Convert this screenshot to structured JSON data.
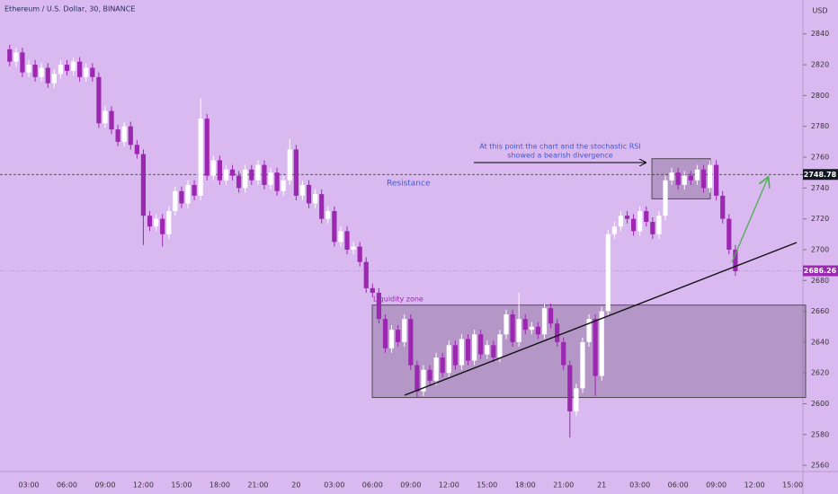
{
  "chart_data": {
    "type": "candlestick",
    "title": "Ethereum / U.S. Dollar, 30, BINANCE",
    "axis_unit": "USD",
    "annotations": {
      "divergence_line1": "At this point the chart and the stochastic RSI",
      "divergence_line2": "showed a bearish divergence",
      "resistance": "Resistance",
      "liquidity": "Liquidity zone"
    },
    "resistance_level": 2748.78,
    "last_price": 2686.26,
    "liquidity_zone": [
      2604,
      2664
    ],
    "divergence_box": [
      2733,
      2759
    ],
    "up_color": "#ffffff",
    "down_color": "#9c27b0",
    "ylim": [
      2556,
      2862
    ],
    "yticks": [
      2560,
      2580,
      2600,
      2620,
      2640,
      2660,
      2680,
      2700,
      2720,
      2740,
      2760,
      2780,
      2800,
      2820,
      2840
    ],
    "categories": [
      null,
      null,
      null,
      "03:00",
      null,
      null,
      null,
      null,
      null,
      "06:00",
      null,
      null,
      null,
      null,
      null,
      "09:00",
      null,
      null,
      null,
      null,
      null,
      "12:00",
      null,
      null,
      null,
      null,
      null,
      "15:00",
      null,
      null,
      null,
      null,
      null,
      "18:00",
      null,
      null,
      null,
      null,
      null,
      "21:00",
      null,
      null,
      null,
      null,
      null,
      "20",
      null,
      null,
      null,
      null,
      null,
      "03:00",
      null,
      null,
      null,
      null,
      null,
      "06:00",
      null,
      null,
      null,
      null,
      null,
      "09:00",
      null,
      null,
      null,
      null,
      null,
      "12:00",
      null,
      null,
      null,
      null,
      null,
      "15:00",
      null,
      null,
      null,
      null,
      null,
      "18:00",
      null,
      null,
      null,
      null,
      null,
      "21:00",
      null,
      null,
      null,
      null,
      null,
      "21",
      null,
      null,
      null,
      null,
      null,
      "03:00",
      null,
      null,
      null,
      null,
      null,
      "06:00",
      null,
      null,
      null,
      null,
      null,
      "09:00",
      null,
      null,
      null,
      null,
      null,
      "12:00",
      null,
      null,
      null,
      null,
      null,
      "15:00",
      null
    ],
    "open": [
      2830,
      2822,
      2828,
      2815,
      2820,
      2812,
      2818,
      2808,
      2814,
      2820,
      2816,
      2822,
      2812,
      2818,
      2812,
      2782,
      2790,
      2778,
      2770,
      2780,
      2768,
      2762,
      2722,
      2715,
      2720,
      2710,
      2725,
      2738,
      2730,
      2742,
      2735,
      2785,
      2748,
      2758,
      2745,
      2752,
      2748,
      2740,
      2752,
      2745,
      2755,
      2742,
      2750,
      2738,
      2745,
      2765,
      2735,
      2742,
      2730,
      2736,
      2720,
      2725,
      2705,
      2712,
      2700,
      2702,
      2692,
      2675,
      2672,
      2655,
      2636,
      2648,
      2640,
      2655,
      2625,
      2608,
      2622,
      2615,
      2630,
      2620,
      2638,
      2625,
      2642,
      2628,
      2645,
      2632,
      2638,
      2630,
      2645,
      2658,
      2640,
      2655,
      2648,
      2650,
      2645,
      2662,
      2652,
      2640,
      2625,
      2595,
      2610,
      2640,
      2655,
      2618,
      2660,
      2710,
      2715,
      2722,
      2720,
      2712,
      2725,
      2718,
      2710,
      2722,
      2745,
      2750,
      2742,
      2748,
      2745,
      2752,
      2740,
      2755,
      2735,
      2720,
      2700,
      null,
      null,
      null,
      null,
      null,
      null,
      null,
      null,
      null,
      null
    ],
    "high": [
      2833,
      2831,
      2831,
      2823,
      2823,
      2821,
      2821,
      2817,
      2823,
      2823,
      2825,
      2825,
      2821,
      2821,
      2815,
      2793,
      2793,
      2781,
      2783,
      2783,
      2771,
      2765,
      2725,
      2723,
      2723,
      2728,
      2741,
      2741,
      2745,
      2745,
      2798,
      2788,
      2761,
      2761,
      2755,
      2755,
      2751,
      2755,
      2755,
      2758,
      2758,
      2753,
      2753,
      2748,
      2772,
      2768,
      2745,
      2745,
      2739,
      2739,
      2728,
      2728,
      2715,
      2715,
      2705,
      2705,
      2695,
      2678,
      2675,
      2658,
      2651,
      2651,
      2658,
      2658,
      2628,
      2625,
      2625,
      2633,
      2633,
      2641,
      2641,
      2645,
      2645,
      2648,
      2648,
      2641,
      2641,
      2648,
      2661,
      2661,
      2672,
      2658,
      2653,
      2653,
      2665,
      2665,
      2655,
      2643,
      2628,
      2613,
      2643,
      2658,
      2658,
      2663,
      2713,
      2718,
      2725,
      2725,
      2723,
      2728,
      2728,
      2721,
      2725,
      2748,
      2753,
      2753,
      2751,
      2751,
      2755,
      2755,
      2758,
      2758,
      2738,
      2723,
      2703,
      null,
      null,
      null,
      null,
      null,
      null,
      null,
      null,
      null,
      null
    ],
    "low": [
      2819,
      2819,
      2812,
      2812,
      2809,
      2809,
      2805,
      2805,
      2811,
      2813,
      2813,
      2809,
      2809,
      2809,
      2779,
      2779,
      2775,
      2767,
      2767,
      2765,
      2759,
      2703,
      2712,
      2712,
      2702,
      2707,
      2722,
      2727,
      2727,
      2732,
      2732,
      2745,
      2745,
      2742,
      2742,
      2745,
      2737,
      2737,
      2742,
      2742,
      2739,
      2739,
      2735,
      2735,
      2742,
      2732,
      2732,
      2727,
      2727,
      2717,
      2717,
      2702,
      2702,
      2697,
      2697,
      2689,
      2672,
      2669,
      2652,
      2633,
      2633,
      2637,
      2637,
      2622,
      2604,
      2605,
      2612,
      2612,
      2617,
      2617,
      2622,
      2622,
      2625,
      2625,
      2629,
      2629,
      2627,
      2627,
      2642,
      2637,
      2637,
      2645,
      2645,
      2642,
      2642,
      2649,
      2637,
      2622,
      2578,
      2592,
      2607,
      2637,
      2605,
      2615,
      2657,
      2707,
      2712,
      2717,
      2709,
      2709,
      2715,
      2707,
      2707,
      2719,
      2742,
      2739,
      2739,
      2742,
      2742,
      2737,
      2737,
      2732,
      2717,
      2697,
      2683,
      null,
      null,
      null,
      null,
      null,
      null,
      null,
      null,
      null,
      null
    ],
    "close": [
      2822,
      2828,
      2815,
      2820,
      2812,
      2818,
      2808,
      2814,
      2820,
      2816,
      2822,
      2812,
      2818,
      2812,
      2782,
      2790,
      2778,
      2770,
      2780,
      2768,
      2762,
      2722,
      2715,
      2720,
      2710,
      2725,
      2738,
      2730,
      2742,
      2735,
      2785,
      2748,
      2758,
      2745,
      2752,
      2748,
      2740,
      2752,
      2745,
      2755,
      2742,
      2750,
      2738,
      2745,
      2765,
      2735,
      2742,
      2730,
      2736,
      2720,
      2725,
      2705,
      2712,
      2700,
      2702,
      2692,
      2675,
      2672,
      2655,
      2636,
      2648,
      2640,
      2655,
      2625,
      2608,
      2622,
      2615,
      2630,
      2620,
      2638,
      2625,
      2642,
      2628,
      2645,
      2632,
      2638,
      2630,
      2645,
      2658,
      2640,
      2655,
      2648,
      2650,
      2645,
      2662,
      2652,
      2640,
      2625,
      2595,
      2610,
      2640,
      2655,
      2618,
      2660,
      2710,
      2715,
      2722,
      2720,
      2712,
      2725,
      2718,
      2710,
      2722,
      2745,
      2750,
      2742,
      2748,
      2745,
      2752,
      2740,
      2755,
      2735,
      2720,
      2700,
      2686,
      null,
      null,
      null,
      null,
      null,
      null,
      null,
      null,
      null,
      null
    ]
  }
}
